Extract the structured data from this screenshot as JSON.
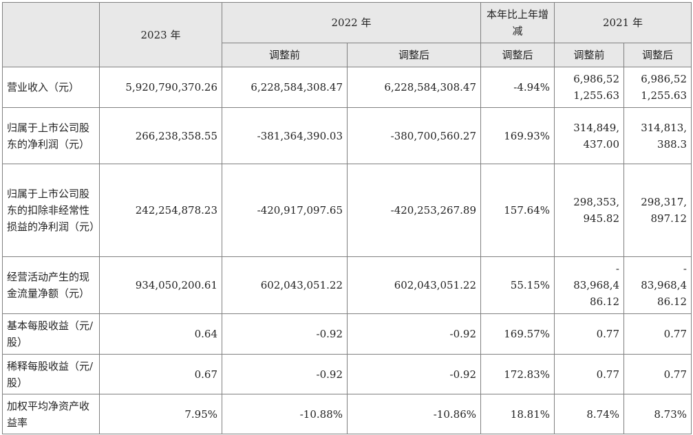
{
  "header": {
    "y2023": "2023 年",
    "y2022": "2022 年",
    "change_col": "本年比上年增减",
    "y2021": "2021 年",
    "before": "调整前",
    "after": "调整后",
    "change_sub": "调整后",
    "before_2021": "调整前",
    "after_2021": "调整后"
  },
  "rows": [
    {
      "label": "营业收入（元）",
      "y2023": "5,920,790,370.26",
      "y2022_before": "6,228,584,308.47",
      "y2022_after": "6,228,584,308.47",
      "change": "-4.94%",
      "y2021_before": "6,986,52\n1,255.63",
      "y2021_after": "6,986,52\n1,255.63"
    },
    {
      "label": "归属于上市公司股东的净利润（元）",
      "y2023": "266,238,358.55",
      "y2022_before": "-381,364,390.03",
      "y2022_after": "-380,700,560.27",
      "change": "169.93%",
      "y2021_before": "314,849,\n437.00",
      "y2021_after": "314,813,\n388.3"
    },
    {
      "label": "归属于上市公司股东的扣除非经常性损益的净利润（元）",
      "y2023": "242,254,878.23",
      "y2022_before": "-420,917,097.65",
      "y2022_after": "-420,253,267.89",
      "change": "157.64%",
      "y2021_before": "298,353,\n945.82",
      "y2021_after": "298,317,\n897.12"
    },
    {
      "label": "经营活动产生的现金流量净额（元）",
      "y2023": "934,050,200.61",
      "y2022_before": "602,043,051.22",
      "y2022_after": "602,043,051.22",
      "change": "55.15%",
      "y2021_before": "-\n83,968,4\n86.12",
      "y2021_after": "-\n83,968,4\n86.12"
    },
    {
      "label": "基本每股收益（元/股）",
      "y2023": "0.64",
      "y2022_before": "-0.92",
      "y2022_after": "-0.92",
      "change": "169.57%",
      "y2021_before": "0.77",
      "y2021_after": "0.77"
    },
    {
      "label": "稀释每股收益（元/股）",
      "y2023": "0.67",
      "y2022_before": "-0.92",
      "y2022_after": "-0.92",
      "change": "172.83%",
      "y2021_before": "0.77",
      "y2021_after": "0.77"
    },
    {
      "label": "加权平均净资产收益率",
      "y2023": "7.95%",
      "y2022_before": "-10.88%",
      "y2022_after": "-10.86%",
      "change": "18.81%",
      "y2021_before": "8.74%",
      "y2021_after": "8.73%"
    }
  ]
}
